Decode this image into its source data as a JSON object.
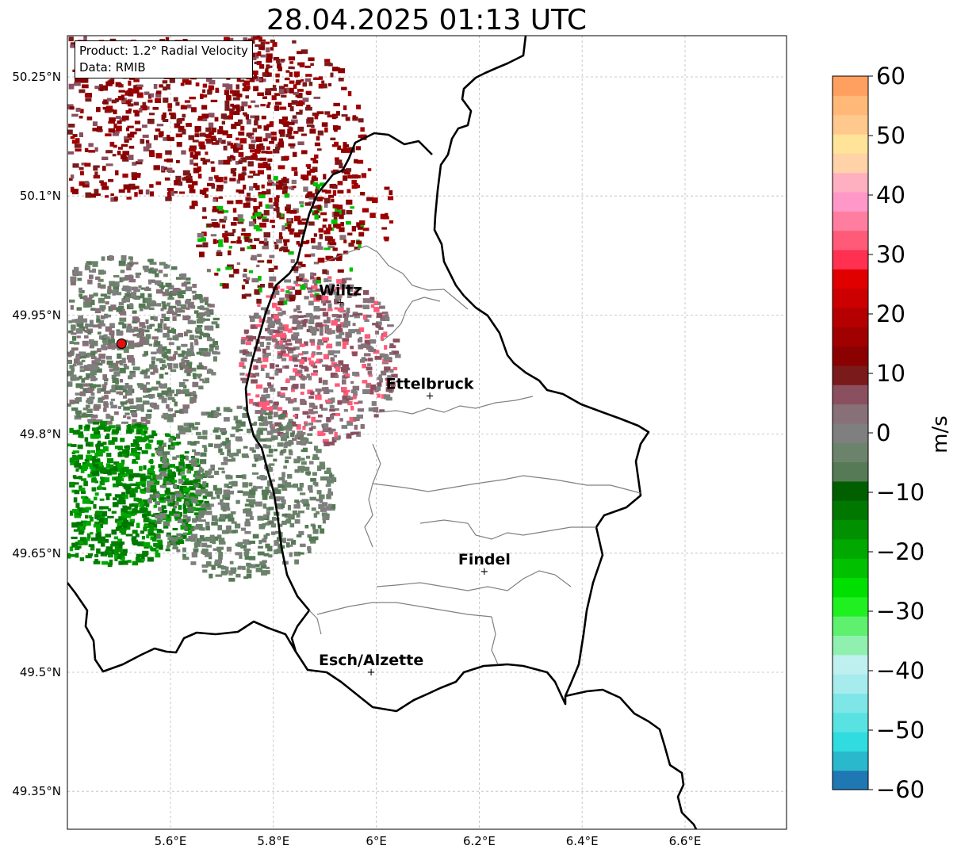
{
  "title": "28.04.2025 01:13 UTC",
  "info": {
    "product": "Product: 1.2° Radial Velocity",
    "data": "Data: RMIB"
  },
  "axes": {
    "lat_ticks": [
      "50.25°N",
      "50.1°N",
      "49.95°N",
      "49.8°N",
      "49.65°N",
      "49.5°N",
      "49.35°N"
    ],
    "lat_values": [
      50.25,
      50.1,
      49.95,
      49.8,
      49.65,
      49.5,
      49.35
    ],
    "lon_ticks": [
      "5.6°E",
      "5.8°E",
      "6°E",
      "6.2°E",
      "6.4°E",
      "6.6°E"
    ],
    "lon_values": [
      5.6,
      5.8,
      6.0,
      6.2,
      6.4,
      6.6
    ],
    "lon_range": [
      5.4,
      6.8
    ],
    "lat_range": [
      49.3,
      50.3
    ],
    "grid": true
  },
  "cities": [
    {
      "name": "Wiltz",
      "lon": 5.93,
      "lat": 49.966
    },
    {
      "name": "Ettelbruck",
      "lon": 6.104,
      "lat": 49.848
    },
    {
      "name": "Findel",
      "lon": 6.21,
      "lat": 49.627
    },
    {
      "name": "Esch/Alzette",
      "lon": 5.99,
      "lat": 49.5
    }
  ],
  "radar_site": {
    "lon": 5.505,
    "lat": 49.914,
    "color": "#e01010"
  },
  "colorbar": {
    "label": "m/s",
    "range": [
      -60,
      60
    ],
    "ticks": [
      "60",
      "50",
      "40",
      "30",
      "20",
      "10",
      "0",
      "−10",
      "−20",
      "−30",
      "−40",
      "−50",
      "−60"
    ],
    "tick_values": [
      60,
      50,
      40,
      30,
      20,
      10,
      0,
      -10,
      -20,
      -30,
      -40,
      -50,
      -60
    ],
    "colors": [
      "#1f78b4",
      "#2ab8cc",
      "#30dce0",
      "#58e2e2",
      "#7ee6e6",
      "#a6ecee",
      "#bff0f0",
      "#90f0b0",
      "#60f070",
      "#20f020",
      "#00e000",
      "#00c000",
      "#00a800",
      "#009000",
      "#007800",
      "#006000",
      "#557a55",
      "#6b836b",
      "#7f7f7f",
      "#877078",
      "#8a5060",
      "#7a1a1a",
      "#8b0000",
      "#a00000",
      "#b40000",
      "#cc0000",
      "#e00000",
      "#ff3050",
      "#ff5a78",
      "#ff7ea0",
      "#ff98c8",
      "#ffb0c0",
      "#ffd2a8",
      "#ffe398",
      "#ffc88c",
      "#ffb878",
      "#ffa060"
    ]
  }
}
